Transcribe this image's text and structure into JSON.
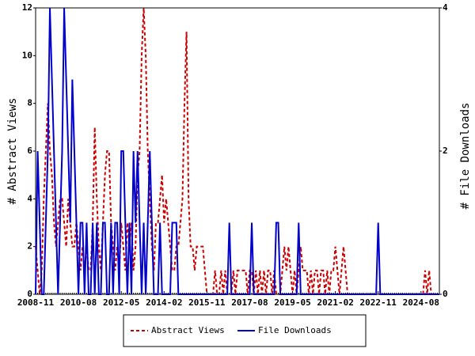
{
  "chart_data": {
    "type": "line",
    "y_label": "# Abstract Views",
    "y2_label": "# File Downloads",
    "categories": [
      "2008-11",
      null,
      null,
      null,
      null,
      null,
      null,
      null,
      null,
      null,
      null,
      null,
      null,
      null,
      null,
      null,
      null,
      null,
      null,
      null,
      null,
      "2010-08",
      null,
      null,
      null,
      null,
      null,
      null,
      null,
      null,
      null,
      null,
      null,
      null,
      null,
      null,
      null,
      null,
      null,
      null,
      null,
      null,
      "2012-05",
      null,
      null,
      null,
      null,
      null,
      null,
      null,
      null,
      null,
      null,
      null,
      null,
      null,
      null,
      null,
      null,
      null,
      null,
      null,
      null,
      "2014-02",
      null,
      null,
      null,
      null,
      null,
      null,
      null,
      null,
      null,
      null,
      null,
      null,
      null,
      null,
      null,
      null,
      null,
      null,
      null,
      null,
      "2015-11",
      null,
      null,
      null,
      null,
      null,
      null,
      null,
      null,
      null,
      null,
      null,
      null,
      null,
      null,
      null,
      null,
      null,
      null,
      null,
      null,
      "2017-08",
      null,
      null,
      null,
      null,
      null,
      null,
      null,
      null,
      null,
      null,
      null,
      null,
      null,
      null,
      null,
      null,
      null,
      null,
      null,
      null,
      "2019-05",
      null,
      null,
      null,
      null,
      null,
      null,
      null,
      null,
      null,
      null,
      null,
      null,
      null,
      null,
      null,
      null,
      null,
      null,
      null,
      null,
      "2021-02",
      null,
      null,
      null,
      null,
      null,
      null,
      null,
      null,
      null,
      null,
      null,
      null,
      null,
      null,
      null,
      null,
      null,
      null,
      null,
      null,
      "2022-11",
      null,
      null,
      null,
      null,
      null,
      null,
      null,
      null,
      null,
      null,
      null,
      null,
      null,
      null,
      null,
      null,
      null,
      null,
      null,
      null,
      "2024-08",
      null,
      null,
      null,
      null,
      null,
      null,
      null,
      null,
      null
    ],
    "series": [
      {
        "name": "Abstract Views",
        "color": "#cc0000",
        "dashed": true,
        "axis": "y",
        "values": [
          2,
          1,
          0,
          1,
          4,
          6,
          8,
          6,
          5,
          3,
          2,
          3,
          4,
          4,
          3,
          2,
          4,
          3,
          2,
          2,
          3,
          2,
          1,
          2,
          1,
          2,
          1,
          1,
          3,
          7,
          4,
          2,
          1,
          3,
          5,
          6,
          6,
          3,
          2,
          1,
          2,
          1,
          3,
          2,
          1,
          3,
          2,
          3,
          1,
          2,
          5,
          6,
          10,
          12,
          10,
          6,
          4,
          2,
          1,
          3,
          3,
          4,
          5,
          3,
          4,
          3,
          2,
          1,
          1,
          2,
          2,
          3,
          4,
          8,
          11,
          4,
          2,
          2,
          1,
          2,
          2,
          2,
          2,
          1,
          0,
          0,
          0,
          0,
          1,
          0,
          0,
          1,
          0,
          1,
          0,
          0,
          0,
          1,
          0,
          1,
          1,
          1,
          1,
          1,
          0,
          1,
          1,
          0,
          1,
          0,
          1,
          0,
          1,
          0,
          1,
          1,
          0,
          1,
          0,
          0,
          0,
          1,
          2,
          1,
          2,
          1,
          0,
          1,
          0,
          1,
          2,
          1,
          1,
          1,
          0,
          1,
          0,
          1,
          1,
          0,
          1,
          1,
          0,
          1,
          0,
          1,
          1,
          2,
          1,
          0,
          1,
          2,
          1,
          0,
          0,
          0,
          0,
          0,
          0,
          0,
          0,
          0,
          0,
          0,
          0,
          0,
          0,
          0,
          0,
          0,
          0,
          0,
          0,
          0,
          0,
          0,
          0,
          0,
          0,
          0,
          0,
          0,
          0,
          0,
          0,
          0,
          0,
          0,
          0,
          0,
          0,
          1,
          0,
          1,
          0,
          0,
          0,
          0,
          0
        ]
      },
      {
        "name": "File Downloads",
        "color": "#0000cc",
        "dashed": false,
        "axis": "y2",
        "values": [
          0,
          2,
          1,
          0,
          0,
          1,
          2,
          4,
          3,
          2,
          1,
          0,
          1,
          2,
          4,
          3,
          2,
          1,
          3,
          2,
          1,
          0,
          1,
          1,
          0,
          1,
          0,
          0,
          1,
          0,
          1,
          0,
          0,
          1,
          1,
          0,
          0,
          1,
          0,
          1,
          1,
          0,
          2,
          2,
          1,
          0,
          1,
          0,
          2,
          1,
          2,
          1,
          0,
          1,
          0,
          1,
          2,
          1,
          0,
          0,
          0,
          1,
          0,
          0,
          0,
          0,
          0,
          1,
          1,
          1,
          0,
          0,
          0,
          0,
          0,
          0,
          0,
          0,
          0,
          0,
          0,
          0,
          0,
          0,
          0,
          0,
          0,
          0,
          0,
          0,
          0,
          0,
          0,
          0,
          0,
          1,
          0,
          0,
          0,
          0,
          0,
          0,
          0,
          0,
          0,
          0,
          1,
          0,
          0,
          0,
          0,
          0,
          0,
          0,
          0,
          0,
          0,
          0,
          1,
          1,
          0,
          0,
          0,
          0,
          0,
          0,
          0,
          0,
          0,
          1,
          0,
          0,
          0,
          0,
          0,
          0,
          0,
          0,
          0,
          0,
          0,
          0,
          0,
          0,
          0,
          0,
          0,
          0,
          0,
          0,
          0,
          0,
          0,
          0,
          0,
          0,
          0,
          0,
          0,
          0,
          0,
          0,
          0,
          0,
          0,
          0,
          0,
          0,
          1,
          0,
          0,
          0,
          0,
          0,
          0,
          0,
          0,
          0,
          0,
          0,
          0,
          0,
          0,
          0,
          0,
          0,
          0,
          0,
          0,
          0,
          0,
          0,
          0,
          0,
          0,
          0,
          0,
          0,
          0
        ]
      }
    ],
    "ylim": [
      0,
      12
    ],
    "yticks": [
      0,
      2,
      4,
      6,
      8,
      10,
      12
    ],
    "y2lim": [
      0,
      4
    ],
    "y2ticks": [
      0,
      2,
      4
    ],
    "legend": "bottom"
  }
}
